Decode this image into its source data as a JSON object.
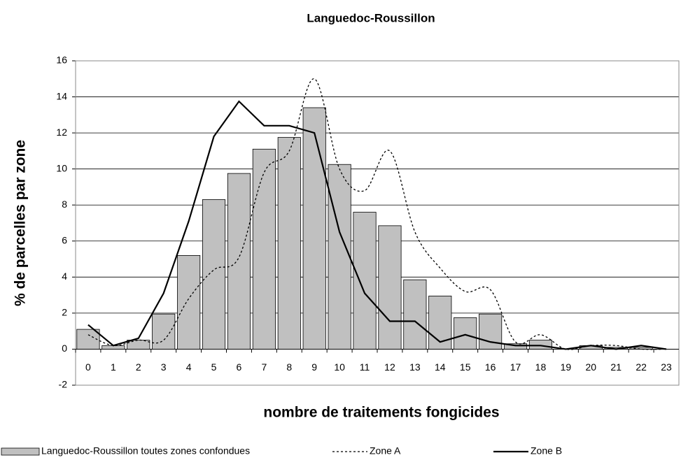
{
  "chart_data": {
    "type": "bar",
    "title": "Languedoc-Roussillon",
    "x_label": "nombre de traitements fongicides",
    "y_label": "% de parcelles par zone",
    "categories": [
      "0",
      "1",
      "2",
      "3",
      "4",
      "5",
      "6",
      "7",
      "8",
      "9",
      "10",
      "11",
      "12",
      "13",
      "14",
      "15",
      "16",
      "17",
      "18",
      "19",
      "20",
      "21",
      "22",
      "23"
    ],
    "series": [
      {
        "name": "Languedoc-Roussillon toutes zones confondues",
        "kind": "bar",
        "color": "#c0c0c0",
        "values": [
          1.1,
          0.2,
          0.5,
          1.95,
          5.2,
          8.3,
          9.75,
          11.1,
          11.75,
          13.4,
          10.25,
          7.6,
          6.85,
          3.85,
          2.95,
          1.75,
          1.95,
          0.3,
          0.5,
          0,
          0.2,
          0.1,
          0.1,
          0
        ]
      },
      {
        "name": "Zone A",
        "kind": "line",
        "color": "#000000",
        "dashed": true,
        "smooth": true,
        "values": [
          0.8,
          0.2,
          0.5,
          0.5,
          2.8,
          4.4,
          5.1,
          9.8,
          11.0,
          15.0,
          10.0,
          8.8,
          11.0,
          6.5,
          4.5,
          3.2,
          3.3,
          0.4,
          0.8,
          0,
          0.2,
          0.2,
          0,
          0
        ]
      },
      {
        "name": "Zone B",
        "kind": "line",
        "color": "#000000",
        "dashed": false,
        "smooth": false,
        "values": [
          1.35,
          0.2,
          0.6,
          3.1,
          7.1,
          11.8,
          13.75,
          12.4,
          12.4,
          12.0,
          6.5,
          3.1,
          1.55,
          1.55,
          0.4,
          0.8,
          0.4,
          0.2,
          0.2,
          0,
          0.2,
          0,
          0.2,
          0
        ]
      }
    ],
    "ylim": [
      -2,
      16
    ],
    "yticks": [
      -2,
      0,
      2,
      4,
      6,
      8,
      10,
      12,
      14,
      16
    ],
    "grid": true,
    "legend": "bottom"
  }
}
